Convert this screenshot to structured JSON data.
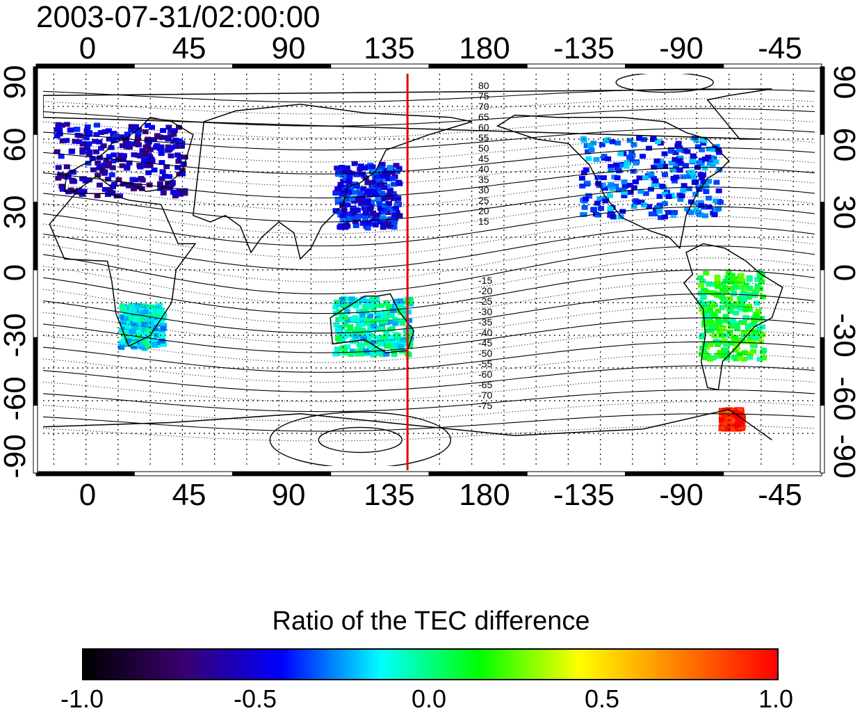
{
  "title": "2003-07-31/02:00:00",
  "map": {
    "lon_ticks_top": [
      "0",
      "45",
      "90",
      "135",
      "180",
      "-135",
      "-90",
      "-45"
    ],
    "lon_ticks_bottom": [
      "0",
      "45",
      "90",
      "135",
      "180",
      "-135",
      "-90",
      "-45"
    ],
    "lat_ticks_left": [
      "90",
      "60",
      "30",
      "0",
      "-30",
      "-60",
      "-90"
    ],
    "lat_ticks_right": [
      "90",
      "60",
      "30",
      "0",
      "-30",
      "-60",
      "-90"
    ],
    "contour_labels_north": [
      "80",
      "75",
      "70",
      "65",
      "60",
      "55",
      "50",
      "45",
      "40",
      "35",
      "30",
      "25",
      "20",
      "15"
    ],
    "contour_labels_south": [
      "-15",
      "-20",
      "-25",
      "-30",
      "-35",
      "-40",
      "-45",
      "-50",
      "-55",
      "-60",
      "-65",
      "-70",
      "-75"
    ],
    "terminator_longitude": 150,
    "terminator_color": "#e00000"
  },
  "colorbar": {
    "title": "Ratio of the TEC difference",
    "min": -1.0,
    "max": 1.0,
    "ticks": [
      "-1.0",
      "-0.5",
      "0.0",
      "0.5",
      "1.0"
    ],
    "stops": [
      "#000000",
      "#3a006e",
      "#0000ff",
      "#00ffff",
      "#00ff00",
      "#ffff00",
      "#ff8000",
      "#ff0000"
    ]
  },
  "regions": [
    {
      "name": "europe",
      "lon": [
        -15,
        45
      ],
      "lat": [
        35,
        68
      ],
      "ratio": -0.55
    },
    {
      "name": "north-america",
      "lon": [
        -130,
        -65
      ],
      "lat": [
        25,
        62
      ],
      "ratio": -0.35
    },
    {
      "name": "east-asia",
      "lon": [
        115,
        145
      ],
      "lat": [
        20,
        50
      ],
      "ratio": -0.45
    },
    {
      "name": "south-america",
      "lon": [
        -75,
        -45
      ],
      "lat": [
        -40,
        0
      ],
      "ratio": 0.1
    },
    {
      "name": "antarctic-peninsula",
      "lon": [
        -65,
        -55
      ],
      "lat": [
        -72,
        -63
      ],
      "ratio": 0.95
    },
    {
      "name": "australia",
      "lon": [
        115,
        150
      ],
      "lat": [
        -38,
        -12
      ],
      "ratio": -0.1
    },
    {
      "name": "south-africa",
      "lon": [
        15,
        35
      ],
      "lat": [
        -35,
        -15
      ],
      "ratio": -0.15
    }
  ]
}
